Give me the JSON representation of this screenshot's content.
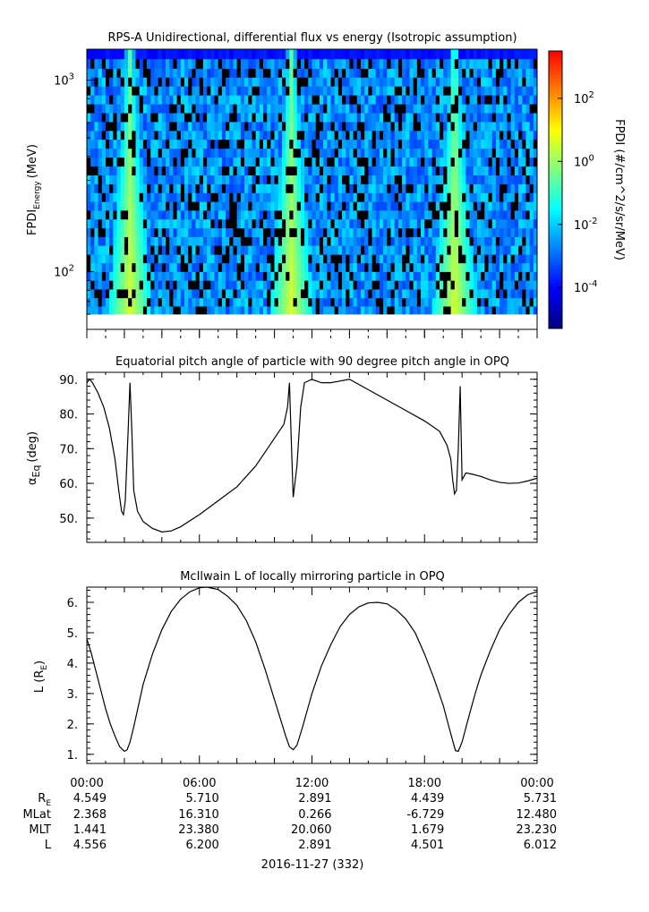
{
  "chart_data": [
    {
      "type": "heatmap",
      "title": "RPS-A Unidirectional, differential flux vs energy (Isotropic assumption)",
      "ylabel_main": "FPDI",
      "ylabel_sub": "Energy",
      "ylabel_unit": "(MeV)",
      "yscale": "log",
      "ylim": [
        50,
        1450
      ],
      "yticks": [
        {
          "value": 100,
          "base": "10",
          "exp": "2"
        },
        {
          "value": 1000,
          "base": "10",
          "exp": "3"
        }
      ],
      "xlim_hours": [
        0,
        24
      ],
      "colorbar": {
        "label": "FPDI (#/cm^2/s/sr/MeV)",
        "scale": "log",
        "range_exp": [
          -5.3,
          3.5
        ],
        "ticks": [
          {
            "base": "10",
            "exp": "-4",
            "value_exp": -4
          },
          {
            "base": "10",
            "exp": "-2",
            "value_exp": -2
          },
          {
            "base": "10",
            "exp": "0",
            "value_exp": 0
          },
          {
            "base": "10",
            "exp": "2",
            "value_exp": 2
          }
        ],
        "colormap": [
          "#00007f",
          "#0000ff",
          "#007fff",
          "#00ffff",
          "#7fff7f",
          "#ffff00",
          "#ff7f00",
          "#ff0000"
        ]
      },
      "energy_channels_mev": [
        60,
        66,
        73,
        81,
        90,
        100,
        111,
        123,
        137,
        152,
        169,
        188,
        209,
        232,
        258,
        287,
        319,
        355,
        395,
        440,
        490,
        545,
        606,
        674,
        750,
        835,
        929,
        1034,
        1150,
        1290
      ],
      "bright_bands_hours": [
        {
          "center": 2.3,
          "name": "band-1"
        },
        {
          "center": 10.9,
          "name": "band-2"
        },
        {
          "center": 19.6,
          "name": "band-3"
        }
      ],
      "top_rows_note_value": "high energy rows ~1e-4"
    },
    {
      "type": "line",
      "title": "Equatorial pitch angle of particle with 90 degree pitch angle in OPQ",
      "ylabel": "α",
      "ylabel_sub": "Eq",
      "ylabel_unit": "(deg)",
      "ylim": [
        43,
        92
      ],
      "yticks": [
        50,
        60,
        70,
        80,
        90
      ],
      "yticklabels": [
        "50.",
        "60.",
        "70.",
        "80.",
        "90."
      ],
      "xlim_hours": [
        0,
        24
      ],
      "x": [
        0,
        0.15,
        0.3,
        0.6,
        0.9,
        1.2,
        1.5,
        1.7,
        1.85,
        1.95,
        2.05,
        2.2,
        2.3,
        2.4,
        2.5,
        2.7,
        3.0,
        3.5,
        4.0,
        4.5,
        5.0,
        6.0,
        7.0,
        8.0,
        9.0,
        10.0,
        10.5,
        10.7,
        10.8,
        10.9,
        11.0,
        11.2,
        11.4,
        11.6,
        12.0,
        12.5,
        13.0,
        13.5,
        14.0,
        15.0,
        16.0,
        17.0,
        18.0,
        18.8,
        19.2,
        19.4,
        19.5,
        19.6,
        19.7,
        19.8,
        19.9,
        20.0,
        20.2,
        20.5,
        21.0,
        21.5,
        22.0,
        22.5,
        23.0,
        23.5,
        24.0
      ],
      "y": [
        89,
        90,
        89,
        86,
        82,
        76,
        67,
        58,
        52,
        51,
        55,
        75,
        89,
        75,
        58,
        52,
        49,
        47,
        46,
        46.3,
        47.5,
        51,
        55,
        59,
        65,
        73,
        77,
        82,
        89,
        72,
        56,
        65,
        82,
        89,
        90,
        89,
        89,
        89.5,
        90,
        87,
        84,
        81,
        78,
        75,
        71,
        67,
        61,
        57,
        58,
        70,
        88,
        61,
        63,
        62.7,
        62,
        61,
        60.3,
        60,
        60.1,
        60.7,
        61.5
      ]
    },
    {
      "type": "line",
      "title": "McIlwain L of locally mirroring particle in OPQ",
      "ylabel": "L (R",
      "ylabel_sub": "E",
      "ylabel_close": ")",
      "ylim": [
        0.7,
        6.5
      ],
      "yticks": [
        1,
        2,
        3,
        4,
        5,
        6
      ],
      "yticklabels": [
        "1.",
        "2.",
        "3.",
        "4.",
        "5.",
        "6."
      ],
      "xlim_hours": [
        0,
        24
      ],
      "x": [
        0,
        0.25,
        0.5,
        0.75,
        1.0,
        1.25,
        1.5,
        1.75,
        2.0,
        2.15,
        2.3,
        2.5,
        2.75,
        3.0,
        3.5,
        4.0,
        4.5,
        5.0,
        5.5,
        6.0,
        6.4,
        7.0,
        7.5,
        8.0,
        8.5,
        9.0,
        9.5,
        10.0,
        10.3,
        10.6,
        10.8,
        11.0,
        11.2,
        11.5,
        12.0,
        12.5,
        13.0,
        13.5,
        14.0,
        14.5,
        15.0,
        15.5,
        16.0,
        16.5,
        17.0,
        17.5,
        18.0,
        18.5,
        19.0,
        19.3,
        19.5,
        19.65,
        19.8,
        20.0,
        20.3,
        20.7,
        21.0,
        21.5,
        22.0,
        22.5,
        23.0,
        23.5,
        24.0
      ],
      "y": [
        4.8,
        4.3,
        3.7,
        3.1,
        2.5,
        2.0,
        1.6,
        1.25,
        1.1,
        1.15,
        1.4,
        1.9,
        2.6,
        3.3,
        4.3,
        5.1,
        5.7,
        6.1,
        6.35,
        6.48,
        6.5,
        6.42,
        6.2,
        5.9,
        5.4,
        4.7,
        3.8,
        2.8,
        2.2,
        1.6,
        1.25,
        1.15,
        1.3,
        1.9,
        3.0,
        3.9,
        4.6,
        5.2,
        5.6,
        5.85,
        5.98,
        6.0,
        5.95,
        5.75,
        5.45,
        5.0,
        4.3,
        3.5,
        2.6,
        1.9,
        1.45,
        1.12,
        1.1,
        1.4,
        2.1,
        3.0,
        3.6,
        4.4,
        5.1,
        5.6,
        6.0,
        6.25,
        6.35
      ]
    }
  ],
  "x_axis": {
    "tick_labels": [
      "00:00",
      "06:00",
      "12:00",
      "18:00",
      "00:00"
    ],
    "tick_hours": [
      0,
      6,
      12,
      18,
      24
    ],
    "date_label": "2016-11-27 (332)"
  },
  "ephemeris": {
    "row_labels": {
      "re": "R",
      "re_sub": "E",
      "mlat": "MLat",
      "mlt": "MLT",
      "l": "L"
    },
    "re": [
      "4.549",
      "5.710",
      "2.891",
      "4.439",
      "5.731"
    ],
    "mlat": [
      "2.368",
      "16.310",
      "0.266",
      "-6.729",
      "12.480"
    ],
    "mlt": [
      "1.441",
      "23.380",
      "20.060",
      "1.679",
      "23.230"
    ],
    "l": [
      "4.556",
      "6.200",
      "2.891",
      "4.501",
      "6.012"
    ]
  }
}
